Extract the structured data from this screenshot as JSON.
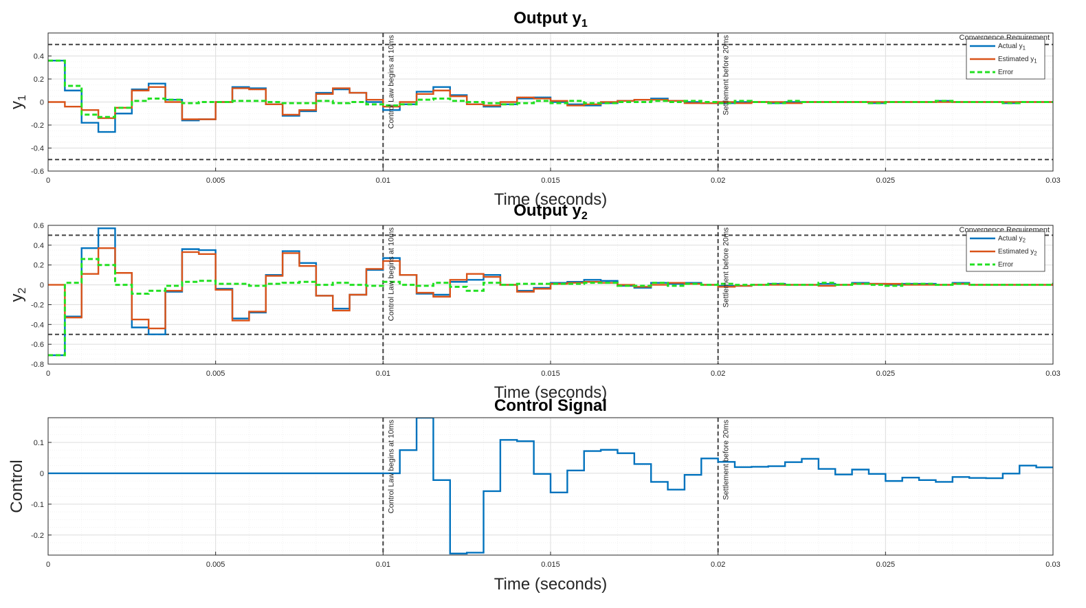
{
  "figure": {
    "ann_control_start": "Control Law begins at 10ms",
    "ann_settle": "Settlement before 20ms",
    "ann_requirement": "Convergence Requirement"
  },
  "colors": {
    "actual": "#0072bd",
    "estimated": "#d95319",
    "error": "#22e022",
    "reference": "#404040",
    "grid": "#dcdcdc"
  },
  "chart_data": [
    {
      "type": "line",
      "title": "Output y",
      "title_sub": "1",
      "xlabel": "Time (seconds)",
      "ylabel": "y",
      "ylabel_sub": "1",
      "xlim": [
        0,
        0.03
      ],
      "ylim": [
        -0.6,
        0.6
      ],
      "xticks": [
        0,
        0.005,
        0.01,
        0.015,
        0.02,
        0.025,
        0.03
      ],
      "xtick_labels": [
        "0",
        "0.005",
        "0.01",
        "0.015",
        "0.02",
        "0.025",
        "0.03"
      ],
      "yticks": [
        -0.6,
        -0.4,
        -0.2,
        0,
        0.2,
        0.4
      ],
      "ytick_labels": [
        "-0.6",
        "-0.4",
        "-0.2",
        "0",
        "0.2",
        "0.4"
      ],
      "grid": true,
      "legend_position": "top-right",
      "hlines": [
        0.5,
        -0.5
      ],
      "vlines": [
        0.01,
        0.02
      ],
      "x": [
        0,
        0.0005,
        0.001,
        0.0015,
        0.002,
        0.0025,
        0.003,
        0.0035,
        0.004,
        0.0045,
        0.005,
        0.0055,
        0.006,
        0.0065,
        0.007,
        0.0075,
        0.008,
        0.0085,
        0.009,
        0.0095,
        0.01,
        0.0105,
        0.011,
        0.0115,
        0.012,
        0.0125,
        0.013,
        0.0135,
        0.014,
        0.0145,
        0.015,
        0.0155,
        0.016,
        0.0165,
        0.017,
        0.0175,
        0.018,
        0.0185,
        0.019,
        0.0195,
        0.02,
        0.0205,
        0.021,
        0.0215,
        0.022,
        0.0225,
        0.023,
        0.0235,
        0.024,
        0.0245,
        0.025,
        0.0255,
        0.026,
        0.0265,
        0.027,
        0.0275,
        0.028,
        0.0285,
        0.029,
        0.0295,
        0.03
      ],
      "series": [
        {
          "name": "Actual y",
          "name_sub": "1",
          "style": "solid",
          "values": [
            0.36,
            0.1,
            -0.18,
            -0.26,
            -0.1,
            0.11,
            0.16,
            0.02,
            -0.16,
            -0.15,
            0.0,
            0.13,
            0.12,
            -0.02,
            -0.12,
            -0.08,
            0.08,
            0.11,
            0.08,
            0.0,
            -0.07,
            -0.02,
            0.09,
            0.13,
            0.06,
            -0.02,
            -0.04,
            -0.02,
            0.03,
            0.04,
            0.0,
            -0.02,
            -0.03,
            -0.01,
            0.01,
            0.02,
            0.03,
            0.01,
            0.0,
            -0.01,
            -0.01,
            0.0,
            0.0,
            -0.01,
            0.0,
            0.0,
            0.0,
            0.0,
            0.0,
            -0.01,
            0.0,
            0.0,
            0.0,
            0.01,
            0.0,
            0.0,
            0.0,
            -0.01,
            0.0,
            0.0,
            0.0
          ]
        },
        {
          "name": "Estimated y",
          "name_sub": "1",
          "style": "solid",
          "values": [
            0.0,
            -0.04,
            -0.07,
            -0.14,
            -0.05,
            0.1,
            0.13,
            0.0,
            -0.15,
            -0.15,
            0.0,
            0.12,
            0.11,
            -0.02,
            -0.11,
            -0.07,
            0.07,
            0.12,
            0.08,
            0.02,
            -0.04,
            0.0,
            0.07,
            0.1,
            0.05,
            -0.02,
            -0.03,
            0.0,
            0.04,
            0.03,
            0.01,
            -0.03,
            -0.02,
            0.0,
            0.01,
            0.02,
            0.02,
            0.01,
            -0.01,
            -0.01,
            0.0,
            -0.01,
            0.0,
            0.0,
            -0.01,
            0.0,
            0.0,
            0.0,
            0.0,
            0.0,
            0.0,
            0.0,
            0.0,
            0.0,
            0.0,
            0.0,
            0.0,
            0.0,
            0.0,
            0.0,
            0.0
          ]
        },
        {
          "name": "Error",
          "style": "dashed",
          "values": [
            0.36,
            0.14,
            -0.11,
            -0.13,
            -0.05,
            0.01,
            0.03,
            0.02,
            -0.01,
            0.0,
            0.0,
            0.01,
            0.01,
            0.0,
            -0.01,
            -0.01,
            0.01,
            -0.01,
            0.0,
            -0.02,
            -0.03,
            -0.02,
            0.02,
            0.03,
            0.01,
            0.0,
            -0.01,
            -0.02,
            -0.01,
            0.01,
            -0.01,
            0.01,
            -0.01,
            -0.01,
            0.0,
            0.0,
            0.01,
            0.0,
            0.01,
            0.0,
            -0.01,
            0.01,
            0.0,
            -0.01,
            0.01,
            0.0,
            0.0,
            0.0,
            0.0,
            -0.01,
            0.0,
            0.0,
            0.0,
            0.01,
            0.0,
            0.0,
            0.0,
            -0.01,
            0.0,
            0.0,
            0.0
          ]
        }
      ]
    },
    {
      "type": "line",
      "title": "Output y",
      "title_sub": "2",
      "xlabel": "Time (seconds)",
      "ylabel": "y",
      "ylabel_sub": "2",
      "xlim": [
        0,
        0.03
      ],
      "ylim": [
        -0.8,
        0.6
      ],
      "xticks": [
        0,
        0.005,
        0.01,
        0.015,
        0.02,
        0.025,
        0.03
      ],
      "xtick_labels": [
        "0",
        "0.005",
        "0.01",
        "0.015",
        "0.02",
        "0.025",
        "0.03"
      ],
      "yticks": [
        -0.8,
        -0.6,
        -0.4,
        -0.2,
        0,
        0.2,
        0.4,
        0.6
      ],
      "ytick_labels": [
        "-0.8",
        "-0.6",
        "-0.4",
        "-0.2",
        "0",
        "0.2",
        "0.4",
        "0.6"
      ],
      "grid": true,
      "legend_position": "top-right",
      "hlines": [
        0.5,
        -0.5
      ],
      "vlines": [
        0.01,
        0.02
      ],
      "x": [
        0,
        0.0005,
        0.001,
        0.0015,
        0.002,
        0.0025,
        0.003,
        0.0035,
        0.004,
        0.0045,
        0.005,
        0.0055,
        0.006,
        0.0065,
        0.007,
        0.0075,
        0.008,
        0.0085,
        0.009,
        0.0095,
        0.01,
        0.0105,
        0.011,
        0.0115,
        0.012,
        0.0125,
        0.013,
        0.0135,
        0.014,
        0.0145,
        0.015,
        0.0155,
        0.016,
        0.0165,
        0.017,
        0.0175,
        0.018,
        0.0185,
        0.019,
        0.0195,
        0.02,
        0.0205,
        0.021,
        0.0215,
        0.022,
        0.0225,
        0.023,
        0.0235,
        0.024,
        0.0245,
        0.025,
        0.0255,
        0.026,
        0.0265,
        0.027,
        0.0275,
        0.028,
        0.0285,
        0.029,
        0.0295,
        0.03
      ],
      "series": [
        {
          "name": "Actual y",
          "name_sub": "2",
          "style": "solid",
          "values": [
            -0.71,
            -0.32,
            0.37,
            0.57,
            0.12,
            -0.43,
            -0.5,
            -0.07,
            0.36,
            0.35,
            -0.04,
            -0.34,
            -0.28,
            0.1,
            0.34,
            0.22,
            -0.11,
            -0.24,
            -0.1,
            0.15,
            0.27,
            0.1,
            -0.09,
            -0.1,
            0.03,
            0.05,
            0.1,
            0.0,
            -0.06,
            -0.03,
            0.02,
            0.03,
            0.05,
            0.04,
            -0.01,
            -0.03,
            0.02,
            0.01,
            0.02,
            0.0,
            -0.01,
            -0.01,
            0.0,
            0.01,
            0.0,
            0.0,
            0.01,
            0.0,
            0.02,
            0.01,
            0.0,
            0.01,
            0.01,
            0.0,
            0.02,
            0.0,
            0.0,
            0.0,
            0.0,
            0.0,
            0.01
          ]
        },
        {
          "name": "Estimated y",
          "name_sub": "2",
          "style": "solid",
          "values": [
            0.0,
            -0.33,
            0.11,
            0.37,
            0.12,
            -0.35,
            -0.44,
            -0.06,
            0.33,
            0.31,
            -0.05,
            -0.36,
            -0.27,
            0.09,
            0.32,
            0.19,
            -0.11,
            -0.26,
            -0.1,
            0.16,
            0.24,
            0.1,
            -0.08,
            -0.12,
            0.05,
            0.11,
            0.08,
            0.0,
            -0.07,
            -0.04,
            0.01,
            0.02,
            0.03,
            0.02,
            0.0,
            -0.02,
            0.0,
            0.02,
            0.01,
            0.0,
            -0.02,
            -0.01,
            0.0,
            0.0,
            0.0,
            0.0,
            -0.01,
            0.0,
            0.01,
            0.01,
            0.01,
            0.0,
            0.0,
            0.0,
            0.01,
            0.0,
            0.0,
            0.0,
            0.0,
            0.0,
            -0.01
          ]
        },
        {
          "name": "Error",
          "style": "dashed",
          "values": [
            -0.71,
            0.02,
            0.26,
            0.2,
            0.0,
            -0.09,
            -0.06,
            -0.01,
            0.03,
            0.04,
            0.01,
            0.01,
            -0.01,
            0.01,
            0.02,
            0.03,
            0.0,
            0.02,
            0.0,
            -0.01,
            0.03,
            0.0,
            -0.01,
            0.02,
            -0.02,
            -0.06,
            0.02,
            0.0,
            0.01,
            0.01,
            0.01,
            0.01,
            0.02,
            0.02,
            -0.01,
            -0.01,
            0.02,
            -0.01,
            0.01,
            0.0,
            0.01,
            0.0,
            0.0,
            0.01,
            0.0,
            0.0,
            0.02,
            0.0,
            0.01,
            0.0,
            -0.01,
            0.01,
            0.01,
            0.0,
            0.01,
            0.0,
            0.0,
            0.0,
            0.0,
            0.0,
            0.02
          ]
        }
      ]
    },
    {
      "type": "line",
      "title": "Control Signal",
      "xlabel": "Time (seconds)",
      "ylabel": "Control",
      "xlim": [
        0,
        0.03
      ],
      "ylim": [
        -0.265,
        0.18
      ],
      "xticks": [
        0,
        0.005,
        0.01,
        0.015,
        0.02,
        0.025,
        0.03
      ],
      "xtick_labels": [
        "0",
        "0.005",
        "0.01",
        "0.015",
        "0.02",
        "0.025",
        "0.03"
      ],
      "yticks": [
        -0.2,
        -0.1,
        0,
        0.1
      ],
      "ytick_labels": [
        "-0.2",
        "-0.1",
        "0",
        "0.1"
      ],
      "grid": true,
      "vlines": [
        0.01,
        0.02
      ],
      "x": [
        0,
        0.0005,
        0.001,
        0.0015,
        0.002,
        0.0025,
        0.003,
        0.0035,
        0.004,
        0.0045,
        0.005,
        0.0055,
        0.006,
        0.0065,
        0.007,
        0.0075,
        0.008,
        0.0085,
        0.009,
        0.0095,
        0.01,
        0.0105,
        0.011,
        0.0115,
        0.012,
        0.0125,
        0.013,
        0.0135,
        0.014,
        0.0145,
        0.015,
        0.0155,
        0.016,
        0.0165,
        0.017,
        0.0175,
        0.018,
        0.0185,
        0.019,
        0.0195,
        0.02,
        0.0205,
        0.021,
        0.0215,
        0.022,
        0.0225,
        0.023,
        0.0235,
        0.024,
        0.0245,
        0.025,
        0.0255,
        0.026,
        0.0265,
        0.027,
        0.0275,
        0.028,
        0.0285,
        0.029,
        0.0295,
        0.03
      ],
      "series": [
        {
          "name": "",
          "style": "solid",
          "values": [
            0,
            0,
            0,
            0,
            0,
            0,
            0,
            0,
            0,
            0,
            0,
            0,
            0,
            0,
            0,
            0,
            0,
            0,
            0,
            0,
            0,
            0.075,
            0.18,
            -0.022,
            -0.26,
            -0.257,
            -0.058,
            0.108,
            0.104,
            -0.002,
            -0.062,
            0.009,
            0.072,
            0.076,
            0.065,
            0.03,
            -0.028,
            -0.053,
            -0.005,
            0.048,
            0.037,
            0.02,
            0.021,
            0.023,
            0.036,
            0.047,
            0.014,
            -0.004,
            0.012,
            -0.002,
            -0.025,
            -0.014,
            -0.022,
            -0.028,
            -0.012,
            -0.015,
            -0.016,
            -0.001,
            0.025,
            0.019,
            0.019
          ]
        }
      ]
    }
  ]
}
